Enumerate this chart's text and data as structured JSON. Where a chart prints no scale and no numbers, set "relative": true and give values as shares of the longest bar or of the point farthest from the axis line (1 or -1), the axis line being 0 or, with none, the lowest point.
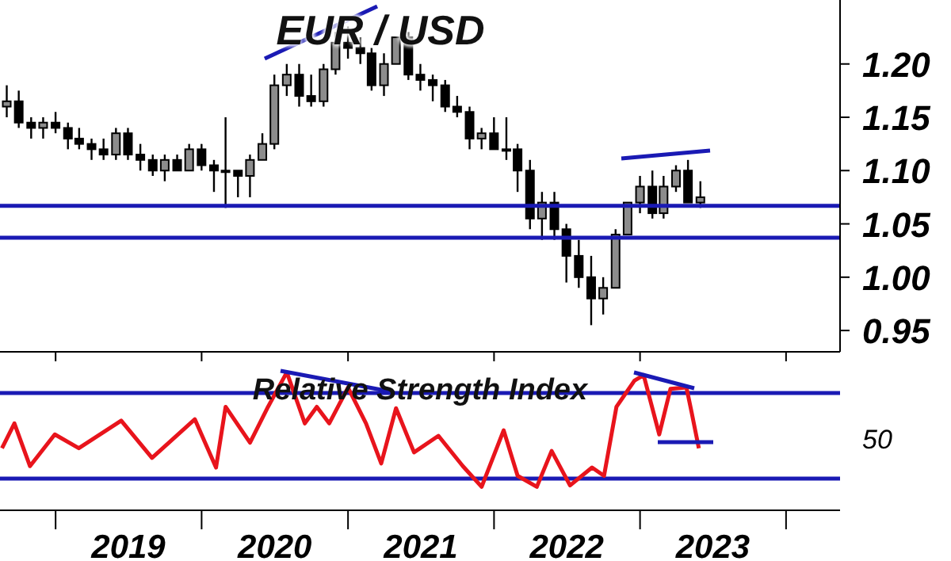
{
  "chart_data": [
    {
      "type": "candlestick",
      "title": "EUR / USD",
      "color": "#000000",
      "xlim": [
        "2018-08-15",
        "2024-05-15"
      ],
      "xticks": [
        {
          "value": "2019",
          "label": null
        },
        {
          "value": "2020",
          "label": null
        },
        {
          "value": "2021",
          "label": null
        },
        {
          "value": "2022",
          "label": null
        },
        {
          "value": "2023",
          "label": null
        },
        {
          "value": "2024",
          "label": null
        }
      ],
      "tick_labels": "y",
      "ylim": [
        0.93,
        1.26
      ],
      "yticks": [
        0.95,
        {
          "value": 1.0,
          "label": "1.00"
        },
        1.05,
        {
          "value": 1.1,
          "label": "1.10"
        },
        1.15,
        {
          "value": 1.2,
          "label": "1.20"
        }
      ],
      "x": [
        "2018-09",
        "2018-10",
        "2018-11",
        "2018-12",
        "2019-01",
        "2019-02",
        "2019-03",
        "2019-04",
        "2019-05",
        "2019-06",
        "2019-07",
        "2019-08",
        "2019-09",
        "2019-10",
        "2019-11",
        "2019-12",
        "2020-01",
        "2020-02",
        "2020-03",
        "2020-04",
        "2020-05",
        "2020-06",
        "2020-07",
        "2020-08",
        "2020-09",
        "2020-10",
        "2020-11",
        "2020-12",
        "2021-01",
        "2021-02",
        "2021-03",
        "2021-04",
        "2021-05",
        "2021-06",
        "2021-07",
        "2021-08",
        "2021-09",
        "2021-10",
        "2021-11",
        "2021-12",
        "2022-01",
        "2022-02",
        "2022-03",
        "2022-04",
        "2022-05",
        "2022-06",
        "2022-07",
        "2022-08",
        "2022-09",
        "2022-10",
        "2022-11",
        "2022-12",
        "2023-01",
        "2023-02",
        "2023-03",
        "2023-04",
        "2023-05",
        "2023-06"
      ],
      "ohlc": [
        [
          1.16,
          1.18,
          1.15,
          1.165
        ],
        [
          1.165,
          1.175,
          1.14,
          1.145
        ],
        [
          1.145,
          1.15,
          1.13,
          1.14
        ],
        [
          1.14,
          1.15,
          1.13,
          1.145
        ],
        [
          1.145,
          1.155,
          1.135,
          1.14
        ],
        [
          1.14,
          1.145,
          1.12,
          1.13
        ],
        [
          1.13,
          1.14,
          1.12,
          1.125
        ],
        [
          1.125,
          1.13,
          1.11,
          1.12
        ],
        [
          1.12,
          1.13,
          1.11,
          1.115
        ],
        [
          1.115,
          1.14,
          1.11,
          1.135
        ],
        [
          1.135,
          1.14,
          1.11,
          1.115
        ],
        [
          1.115,
          1.125,
          1.1,
          1.11
        ],
        [
          1.11,
          1.115,
          1.095,
          1.1
        ],
        [
          1.1,
          1.115,
          1.09,
          1.11
        ],
        [
          1.11,
          1.115,
          1.1,
          1.1
        ],
        [
          1.1,
          1.125,
          1.1,
          1.12
        ],
        [
          1.12,
          1.125,
          1.1,
          1.105
        ],
        [
          1.105,
          1.11,
          1.08,
          1.1
        ],
        [
          1.1,
          1.15,
          1.065,
          1.1
        ],
        [
          1.1,
          1.1,
          1.075,
          1.095
        ],
        [
          1.095,
          1.115,
          1.075,
          1.11
        ],
        [
          1.11,
          1.135,
          1.11,
          1.125
        ],
        [
          1.125,
          1.19,
          1.12,
          1.18
        ],
        [
          1.18,
          1.2,
          1.17,
          1.19
        ],
        [
          1.19,
          1.2,
          1.16,
          1.17
        ],
        [
          1.17,
          1.19,
          1.16,
          1.165
        ],
        [
          1.165,
          1.2,
          1.16,
          1.195
        ],
        [
          1.195,
          1.23,
          1.19,
          1.22
        ],
        [
          1.22,
          1.235,
          1.205,
          1.215
        ],
        [
          1.215,
          1.225,
          1.2,
          1.21
        ],
        [
          1.21,
          1.215,
          1.175,
          1.18
        ],
        [
          1.18,
          1.21,
          1.17,
          1.2
        ],
        [
          1.2,
          1.225,
          1.2,
          1.225
        ],
        [
          1.225,
          1.23,
          1.185,
          1.19
        ],
        [
          1.19,
          1.2,
          1.175,
          1.185
        ],
        [
          1.185,
          1.19,
          1.165,
          1.18
        ],
        [
          1.18,
          1.185,
          1.155,
          1.16
        ],
        [
          1.16,
          1.17,
          1.15,
          1.155
        ],
        [
          1.155,
          1.16,
          1.12,
          1.13
        ],
        [
          1.13,
          1.14,
          1.12,
          1.135
        ],
        [
          1.135,
          1.15,
          1.12,
          1.12
        ],
        [
          1.12,
          1.15,
          1.11,
          1.12
        ],
        [
          1.12,
          1.125,
          1.08,
          1.1
        ],
        [
          1.1,
          1.11,
          1.045,
          1.055
        ],
        [
          1.055,
          1.08,
          1.035,
          1.07
        ],
        [
          1.07,
          1.08,
          1.035,
          1.045
        ],
        [
          1.045,
          1.05,
          0.995,
          1.02
        ],
        [
          1.02,
          1.035,
          0.99,
          1.0
        ],
        [
          1.0,
          1.02,
          0.955,
          0.98
        ],
        [
          0.98,
          1.0,
          0.965,
          0.99
        ],
        [
          0.99,
          1.045,
          0.99,
          1.04
        ],
        [
          1.04,
          1.07,
          1.04,
          1.07
        ],
        [
          1.07,
          1.095,
          1.06,
          1.085
        ],
        [
          1.085,
          1.1,
          1.055,
          1.06
        ],
        [
          1.06,
          1.095,
          1.055,
          1.085
        ],
        [
          1.085,
          1.105,
          1.08,
          1.1
        ],
        [
          1.1,
          1.11,
          1.07,
          1.07
        ],
        [
          1.07,
          1.09,
          1.065,
          1.075
        ]
      ],
      "ref_lines": [
        {
          "axis": "y",
          "value": 1.067,
          "color": "#1a1ab4"
        },
        {
          "axis": "y",
          "value": 1.037,
          "color": "#1a1ab4"
        }
      ]
    },
    {
      "type": "line",
      "title": "Relative Strength Index",
      "relative": true,
      "xlim": [
        "2018-08-15",
        "2024-05-15"
      ],
      "xticks": [
        {
          "value": "2019",
          "label": null
        },
        {
          "value": "2019-07-02",
          "label": "2019"
        },
        {
          "value": "2020",
          "label": null
        },
        {
          "value": "2020-07-02",
          "label": "2020"
        },
        {
          "value": "2021",
          "label": null
        },
        {
          "value": "2021-07-02",
          "label": "2021"
        },
        {
          "value": "2022",
          "label": null
        },
        {
          "value": "2022-07-02",
          "label": "2022"
        },
        {
          "value": "2023",
          "label": null
        },
        {
          "value": "2023-07-02",
          "label": "2023"
        },
        {
          "value": "2024",
          "label": null
        }
      ],
      "annotations": [
        "50"
      ],
      "series": [
        {
          "color": "#e8141c",
          "x": [
            "2018-08-20",
            "2018-09-20",
            "2018-10-29",
            "2018-12-30",
            "2019-02-28",
            "2019-06-14",
            "2019-08-30",
            "2019-12-15",
            "2020-02-06",
            "2020-03-01",
            "2020-05-01",
            "2020-06-15",
            "2020-08-01",
            "2020-09-15",
            "2020-10-15",
            "2020-11-15",
            "2021-01-01",
            "2021-02-15",
            "2021-03-25",
            "2021-05-01",
            "2021-06-15",
            "2021-08-15",
            "2021-10-15",
            "2021-12-01",
            "2022-01-25",
            "2022-03-01",
            "2022-04-18",
            "2022-05-25",
            "2022-07-10",
            "2022-09-03",
            "2022-10-03",
            "2022-11-03",
            "2022-12-18",
            "2023-01-10",
            "2023-02-18",
            "2023-03-18",
            "2023-04-27",
            "2023-05-10",
            "2023-05-28"
          ],
          "values": [
            0.45,
            0.63,
            0.32,
            0.55,
            0.45,
            0.65,
            0.38,
            0.66,
            0.31,
            0.75,
            0.49,
            0.75,
            1,
            0.63,
            0.75,
            0.63,
            0.89,
            0.63,
            0.34,
            0.74,
            0.42,
            0.54,
            0.32,
            0.17,
            0.58,
            0.25,
            0.17,
            0.43,
            0.18,
            0.31,
            0.25,
            0.75,
            0.94,
            0.98,
            0.55,
            0.88,
            0.89,
            0.71,
            0.45
          ]
        }
      ],
      "ref_lines": [
        {
          "axis": "y",
          "value": 0.85,
          "color": "#1a1ab4"
        },
        {
          "axis": "y",
          "value": 0.23,
          "color": "#1a1ab4"
        }
      ]
    }
  ]
}
